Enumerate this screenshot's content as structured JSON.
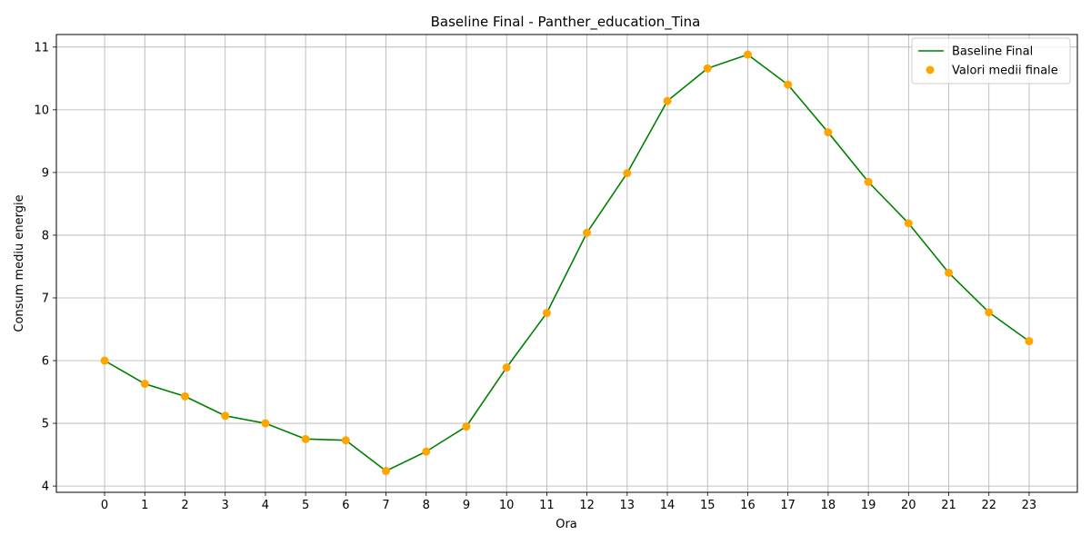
{
  "chart_data": {
    "type": "line",
    "title": "Baseline Final - Panther_education_Tina",
    "xlabel": "Ora",
    "ylabel": "Consum mediu energie",
    "x": [
      0,
      1,
      2,
      3,
      4,
      5,
      6,
      7,
      8,
      9,
      10,
      11,
      12,
      13,
      14,
      15,
      16,
      17,
      18,
      19,
      20,
      21,
      22,
      23
    ],
    "xlim": [
      -1.2,
      24.2
    ],
    "ylim": [
      3.9,
      11.2
    ],
    "yticks": [
      4,
      5,
      6,
      7,
      8,
      9,
      10,
      11
    ],
    "grid": true,
    "legend_position": "top-right",
    "series": [
      {
        "name": "Baseline Final",
        "kind": "line",
        "color": "#008000",
        "values": [
          6.0,
          5.63,
          5.43,
          5.12,
          5.0,
          4.75,
          4.73,
          4.24,
          4.55,
          4.95,
          5.89,
          6.76,
          8.04,
          8.99,
          10.14,
          10.66,
          10.88,
          10.4,
          9.64,
          8.85,
          8.19,
          7.4,
          6.77,
          6.31
        ]
      },
      {
        "name": "Valori medii finale",
        "kind": "scatter",
        "color": "#ffa500",
        "values": [
          6.0,
          5.63,
          5.43,
          5.12,
          5.0,
          4.75,
          4.73,
          4.24,
          4.55,
          4.95,
          5.89,
          6.76,
          8.04,
          8.99,
          10.14,
          10.66,
          10.88,
          10.4,
          9.64,
          8.85,
          8.19,
          7.4,
          6.77,
          6.31
        ]
      }
    ]
  }
}
